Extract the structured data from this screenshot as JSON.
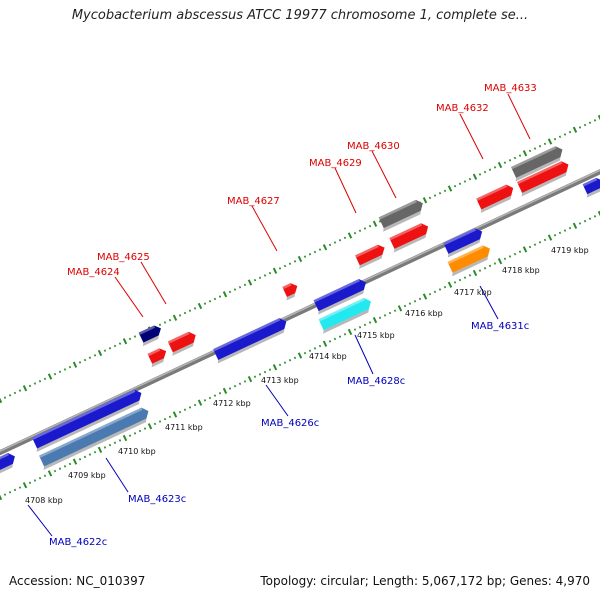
{
  "title": "Mycobacterium abscessus ATCC 19977 chromosome 1, complete se...",
  "footer": {
    "accession": "Accession: NC_010397",
    "topology": "Topology: circular; Length: 5,067,172 bp; Genes: 4,970"
  },
  "colors": {
    "backbone": "#8c8c8c",
    "tick": "#2a8a2a",
    "forward_label": "#dd0000",
    "reverse_label": "#0000bb"
  },
  "chart_data": {
    "type": "genome-map",
    "kbp_labels": [
      "4708 kbp",
      "4709 kbp",
      "4710 kbp",
      "4711 kbp",
      "4712 kbp",
      "4713 kbp",
      "4714 kbp",
      "4715 kbp",
      "4716 kbp",
      "4717 kbp",
      "4718 kbp",
      "4719 kbp"
    ],
    "forward_labels": [
      "MAB_4624",
      "MAB_4625",
      "MAB_4627",
      "MAB_4629",
      "MAB_4630",
      "MAB_4632",
      "MAB_4633"
    ],
    "reverse_labels": [
      "MAB_4622c",
      "MAB_4623c",
      "MAB_4626c",
      "MAB_4628c",
      "MAB_4631c"
    ],
    "genes": [
      {
        "color": "#1a1acc"
      },
      {
        "color": "#1a1acc"
      },
      {
        "color": "#4a7ab0"
      },
      {
        "color": "#000077"
      },
      {
        "color": "#ee1111"
      },
      {
        "color": "#ee1111"
      },
      {
        "color": "#1a1acc"
      },
      {
        "color": "#ee1111"
      },
      {
        "color": "#1a1acc"
      },
      {
        "color": "#22e8f0"
      },
      {
        "color": "#ee1111"
      },
      {
        "color": "#666666"
      },
      {
        "color": "#ee1111"
      },
      {
        "color": "#1a1acc"
      },
      {
        "color": "#ff8c00"
      },
      {
        "color": "#ee1111"
      },
      {
        "color": "#666666"
      },
      {
        "color": "#ee1111"
      },
      {
        "color": "#1a1acc"
      }
    ]
  }
}
